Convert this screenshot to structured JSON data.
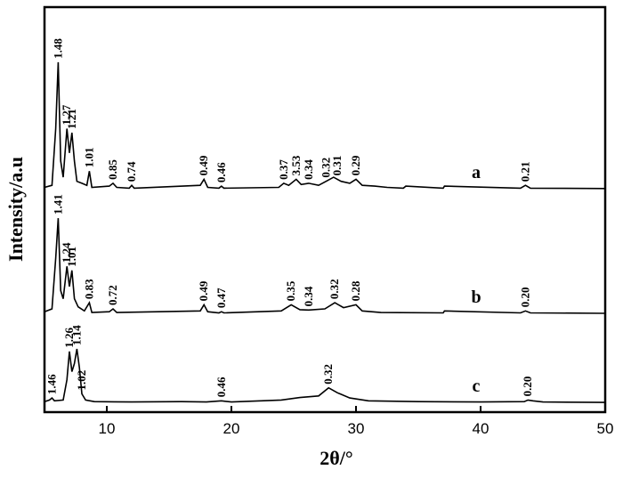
{
  "chart_data": {
    "type": "line",
    "xlabel": "2θ/°",
    "ylabel": "Intensity/a.u",
    "xlim": [
      5,
      50
    ],
    "xticks": [
      10,
      20,
      30,
      40,
      50
    ],
    "ylim": [
      0,
      100
    ],
    "series": [
      {
        "name": "a",
        "color": "#000000",
        "x": [
          5,
          5.6,
          5.9,
          6.1,
          6.3,
          6.5,
          6.8,
          7.0,
          7.2,
          7.4,
          7.6,
          8.0,
          8.4,
          8.6,
          8.8,
          10.2,
          10.5,
          10.8,
          11.8,
          12.0,
          12.2,
          17.5,
          17.8,
          18.1,
          19.0,
          19.2,
          19.4,
          23.8,
          24.2,
          24.6,
          25.2,
          25.6,
          26.2,
          27.0,
          27.6,
          28.2,
          28.8,
          29.5,
          30.0,
          30.5,
          31.5,
          32.5,
          33.8,
          34.0,
          37.0,
          37.1,
          43.2,
          43.6,
          44.0,
          50
        ],
        "values": [
          55.5,
          56,
          70,
          86.4,
          62,
          58,
          70,
          64,
          69,
          62,
          57,
          56.5,
          56,
          59.5,
          55.5,
          55.8,
          56.5,
          55.5,
          55.3,
          56,
          55.3,
          56,
          57.5,
          55.5,
          55.3,
          55.8,
          55.3,
          55.5,
          56.5,
          56,
          57.5,
          56.2,
          56.5,
          56,
          57,
          58,
          57,
          56.5,
          57.5,
          56,
          55.8,
          55.5,
          55.3,
          55.8,
          55.3,
          55.8,
          55.3,
          56,
          55.3,
          55.2
        ],
        "peaks": [
          {
            "x": 6.1,
            "label": "1.48"
          },
          {
            "x": 6.8,
            "label": "1.27"
          },
          {
            "x": 7.2,
            "label": "1.21"
          },
          {
            "x": 8.6,
            "label": "1.01"
          },
          {
            "x": 10.5,
            "label": "0.85"
          },
          {
            "x": 12.0,
            "label": "0.74"
          },
          {
            "x": 17.8,
            "label": "0.49"
          },
          {
            "x": 19.2,
            "label": "0.46"
          },
          {
            "x": 24.2,
            "label": "0.37"
          },
          {
            "x": 25.2,
            "label": "3.53"
          },
          {
            "x": 26.2,
            "label": "0.34"
          },
          {
            "x": 27.6,
            "label": "0.32"
          },
          {
            "x": 28.5,
            "label": "0.31"
          },
          {
            "x": 30.0,
            "label": "0.29"
          },
          {
            "x": 43.6,
            "label": "0.21"
          }
        ]
      },
      {
        "name": "b",
        "color": "#000000",
        "x": [
          5,
          5.6,
          5.9,
          6.1,
          6.3,
          6.5,
          6.8,
          7.0,
          7.2,
          7.4,
          7.7,
          8.2,
          8.6,
          8.8,
          10.2,
          10.5,
          10.8,
          17.5,
          17.8,
          18.1,
          19.0,
          19.2,
          19.4,
          24.0,
          24.8,
          25.5,
          26.2,
          27.5,
          28.3,
          29.0,
          30.0,
          30.5,
          32,
          37.0,
          37.1,
          43.2,
          43.6,
          44.0,
          50
        ],
        "values": [
          24.8,
          25.5,
          38,
          47.9,
          30,
          28,
          36,
          31,
          35,
          28,
          26,
          25,
          27,
          24.6,
          24.8,
          25.5,
          24.6,
          25,
          26.5,
          24.8,
          24.5,
          24.8,
          24.5,
          25,
          26.5,
          25.3,
          25.2,
          25.5,
          27,
          25.8,
          26.5,
          25,
          24.6,
          24.5,
          25,
          24.5,
          25,
          24.5,
          24.4
        ],
        "peaks": [
          {
            "x": 6.1,
            "label": "1.41"
          },
          {
            "x": 6.8,
            "label": "1.24"
          },
          {
            "x": 7.2,
            "label": "1.01"
          },
          {
            "x": 8.6,
            "label": "0.83"
          },
          {
            "x": 10.5,
            "label": "0.72"
          },
          {
            "x": 17.8,
            "label": "0.49"
          },
          {
            "x": 19.2,
            "label": "0.47"
          },
          {
            "x": 24.8,
            "label": "0.35"
          },
          {
            "x": 26.2,
            "label": "0.34"
          },
          {
            "x": 28.3,
            "label": "0.32"
          },
          {
            "x": 30.0,
            "label": "0.28"
          },
          {
            "x": 43.6,
            "label": "0.20"
          }
        ]
      },
      {
        "name": "c",
        "color": "#000000",
        "x": [
          5,
          5.4,
          5.6,
          5.8,
          6.5,
          6.8,
          7.0,
          7.2,
          7.4,
          7.6,
          7.8,
          8.0,
          8.3,
          9,
          12,
          16,
          18,
          19.2,
          20,
          24,
          25.5,
          27,
          27.8,
          28.5,
          29.5,
          31,
          35,
          40,
          43.5,
          43.8,
          44.2,
          45,
          50
        ],
        "values": [
          2.6,
          3,
          3.5,
          2.8,
          3,
          8,
          15,
          10,
          12,
          15.6,
          11,
          4.5,
          3,
          2.6,
          2.5,
          2.6,
          2.5,
          2.8,
          2.5,
          3,
          3.6,
          4,
          6,
          4.8,
          3.5,
          2.8,
          2.6,
          2.5,
          2.6,
          3,
          2.8,
          2.5,
          2.4
        ],
        "peaks": [
          {
            "x": 5.6,
            "label": "1.46"
          },
          {
            "x": 7.0,
            "label": "1.26"
          },
          {
            "x": 7.6,
            "label": "1.14"
          },
          {
            "x": 8.0,
            "label": "1.02"
          },
          {
            "x": 19.2,
            "label": "0.46"
          },
          {
            "x": 27.8,
            "label": "0.32"
          },
          {
            "x": 43.8,
            "label": "0.20"
          }
        ]
      }
    ]
  }
}
